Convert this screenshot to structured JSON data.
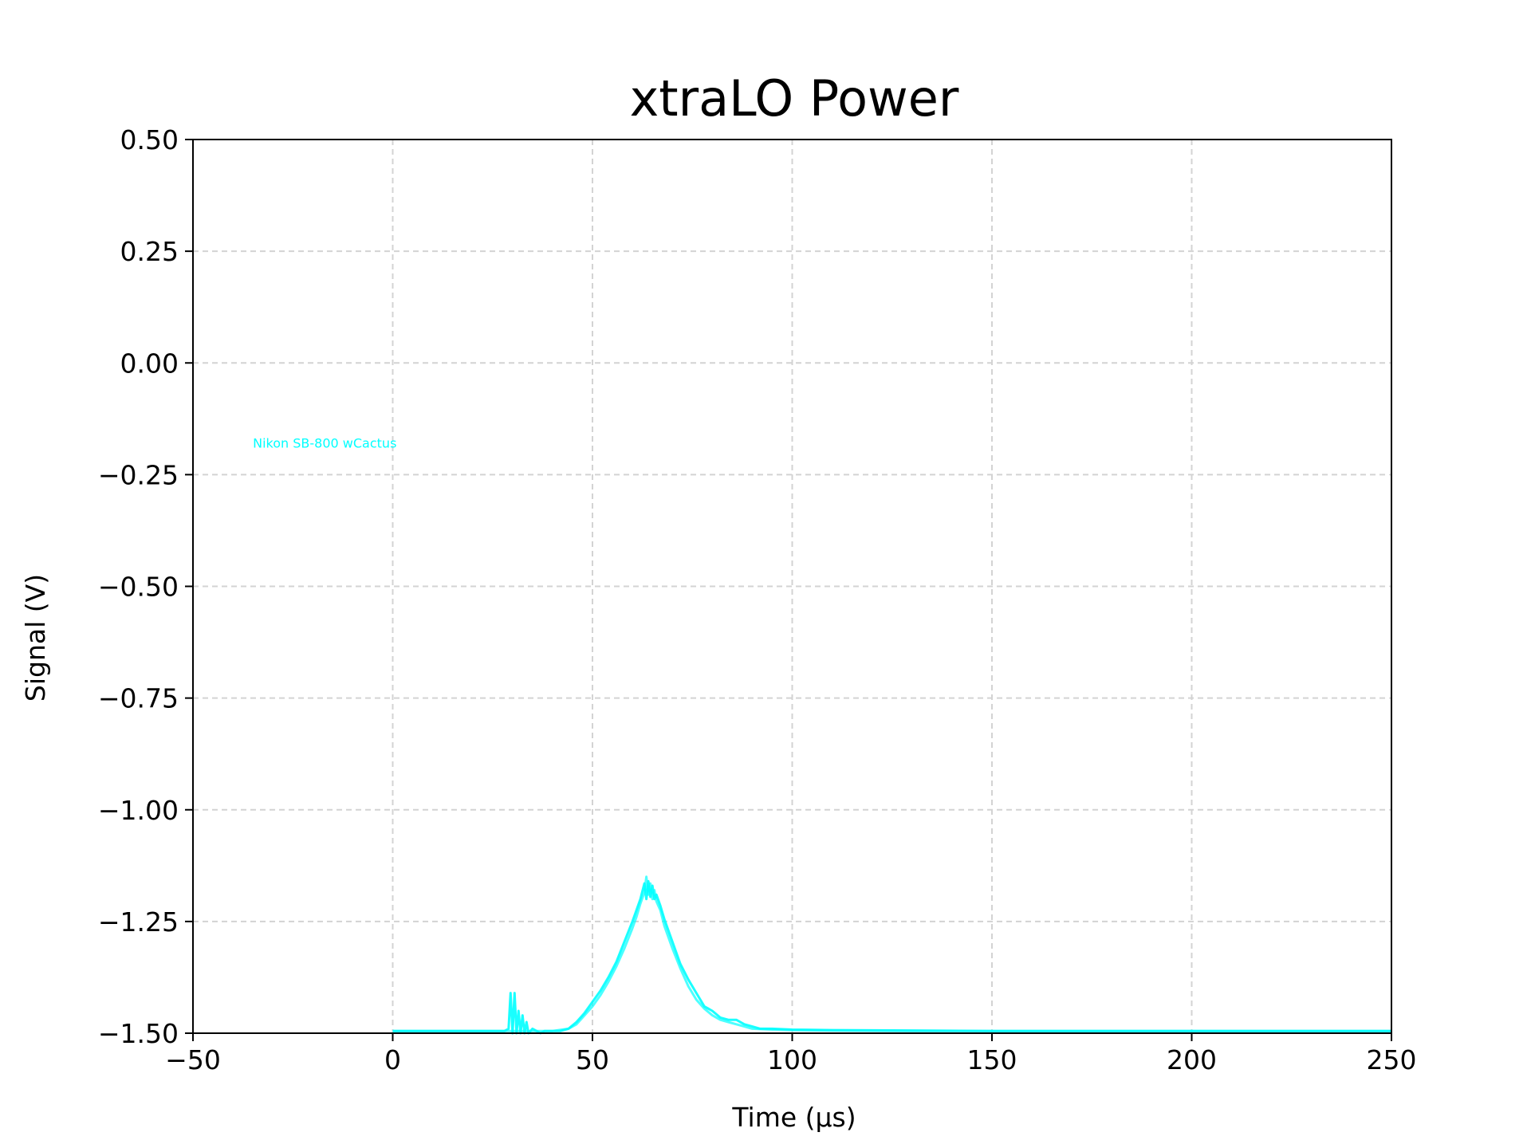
{
  "chart_data": {
    "type": "line",
    "title": "xtraLO Power",
    "xlabel": "Time (µs)",
    "ylabel": "Signal (V)",
    "xlim": [
      -50,
      250
    ],
    "ylim": [
      -1.5,
      0.5
    ],
    "xticks": [
      "−50",
      "0",
      "50",
      "100",
      "150",
      "200",
      "250"
    ],
    "yticks": [
      "0.50",
      "0.25",
      "0.00",
      "−0.25",
      "−0.50",
      "−0.75",
      "−1.00",
      "−1.25",
      "−1.50"
    ],
    "grid": true,
    "line_color": "#00ffff",
    "annotation": {
      "text": "Nikon SB-800 wCactus",
      "x": -35,
      "y": -0.19
    },
    "series": [
      {
        "x": [
          0,
          10,
          20,
          28,
          29,
          29.5,
          30,
          30.5,
          31,
          31.5,
          32,
          32.5,
          33,
          33.5,
          34,
          35,
          36,
          37,
          38,
          40,
          42,
          44,
          46,
          48,
          50,
          52,
          54,
          56,
          58,
          60,
          61,
          62,
          63,
          63.5,
          64,
          64.5,
          65,
          65.5,
          66,
          67,
          68,
          70,
          72,
          74,
          76,
          78,
          80,
          82,
          84,
          86,
          88,
          90,
          92,
          95,
          100,
          110,
          130,
          150,
          200,
          250
        ],
        "y": [
          -1.495,
          -1.495,
          -1.495,
          -1.495,
          -1.49,
          -1.41,
          -1.5,
          -1.41,
          -1.5,
          -1.45,
          -1.5,
          -1.46,
          -1.5,
          -1.475,
          -1.5,
          -1.49,
          -1.495,
          -1.5,
          -1.495,
          -1.495,
          -1.495,
          -1.49,
          -1.475,
          -1.455,
          -1.43,
          -1.405,
          -1.375,
          -1.34,
          -1.295,
          -1.25,
          -1.225,
          -1.2,
          -1.165,
          -1.2,
          -1.16,
          -1.195,
          -1.17,
          -1.2,
          -1.19,
          -1.215,
          -1.245,
          -1.295,
          -1.345,
          -1.38,
          -1.41,
          -1.44,
          -1.45,
          -1.465,
          -1.47,
          -1.47,
          -1.48,
          -1.485,
          -1.49,
          -1.49,
          -1.492,
          -1.493,
          -1.494,
          -1.495,
          -1.495,
          -1.495
        ]
      },
      {
        "x": [
          0,
          10,
          20,
          30,
          40,
          44,
          46,
          48,
          50,
          52,
          54,
          56,
          58,
          60,
          61,
          62,
          63,
          63.5,
          64,
          64.5,
          65,
          65.5,
          66,
          67,
          68,
          70,
          72,
          74,
          76,
          78,
          80,
          82,
          84,
          86,
          88,
          90,
          95,
          100,
          110,
          130,
          150,
          200,
          250
        ],
        "y": [
          -1.495,
          -1.495,
          -1.495,
          -1.495,
          -1.495,
          -1.49,
          -1.48,
          -1.46,
          -1.44,
          -1.415,
          -1.385,
          -1.35,
          -1.31,
          -1.265,
          -1.24,
          -1.21,
          -1.185,
          -1.15,
          -1.19,
          -1.165,
          -1.2,
          -1.18,
          -1.205,
          -1.225,
          -1.26,
          -1.31,
          -1.355,
          -1.395,
          -1.425,
          -1.445,
          -1.46,
          -1.47,
          -1.475,
          -1.48,
          -1.485,
          -1.49,
          -1.492,
          -1.493,
          -1.494,
          -1.495,
          -1.495,
          -1.495,
          -1.495
        ]
      }
    ]
  }
}
